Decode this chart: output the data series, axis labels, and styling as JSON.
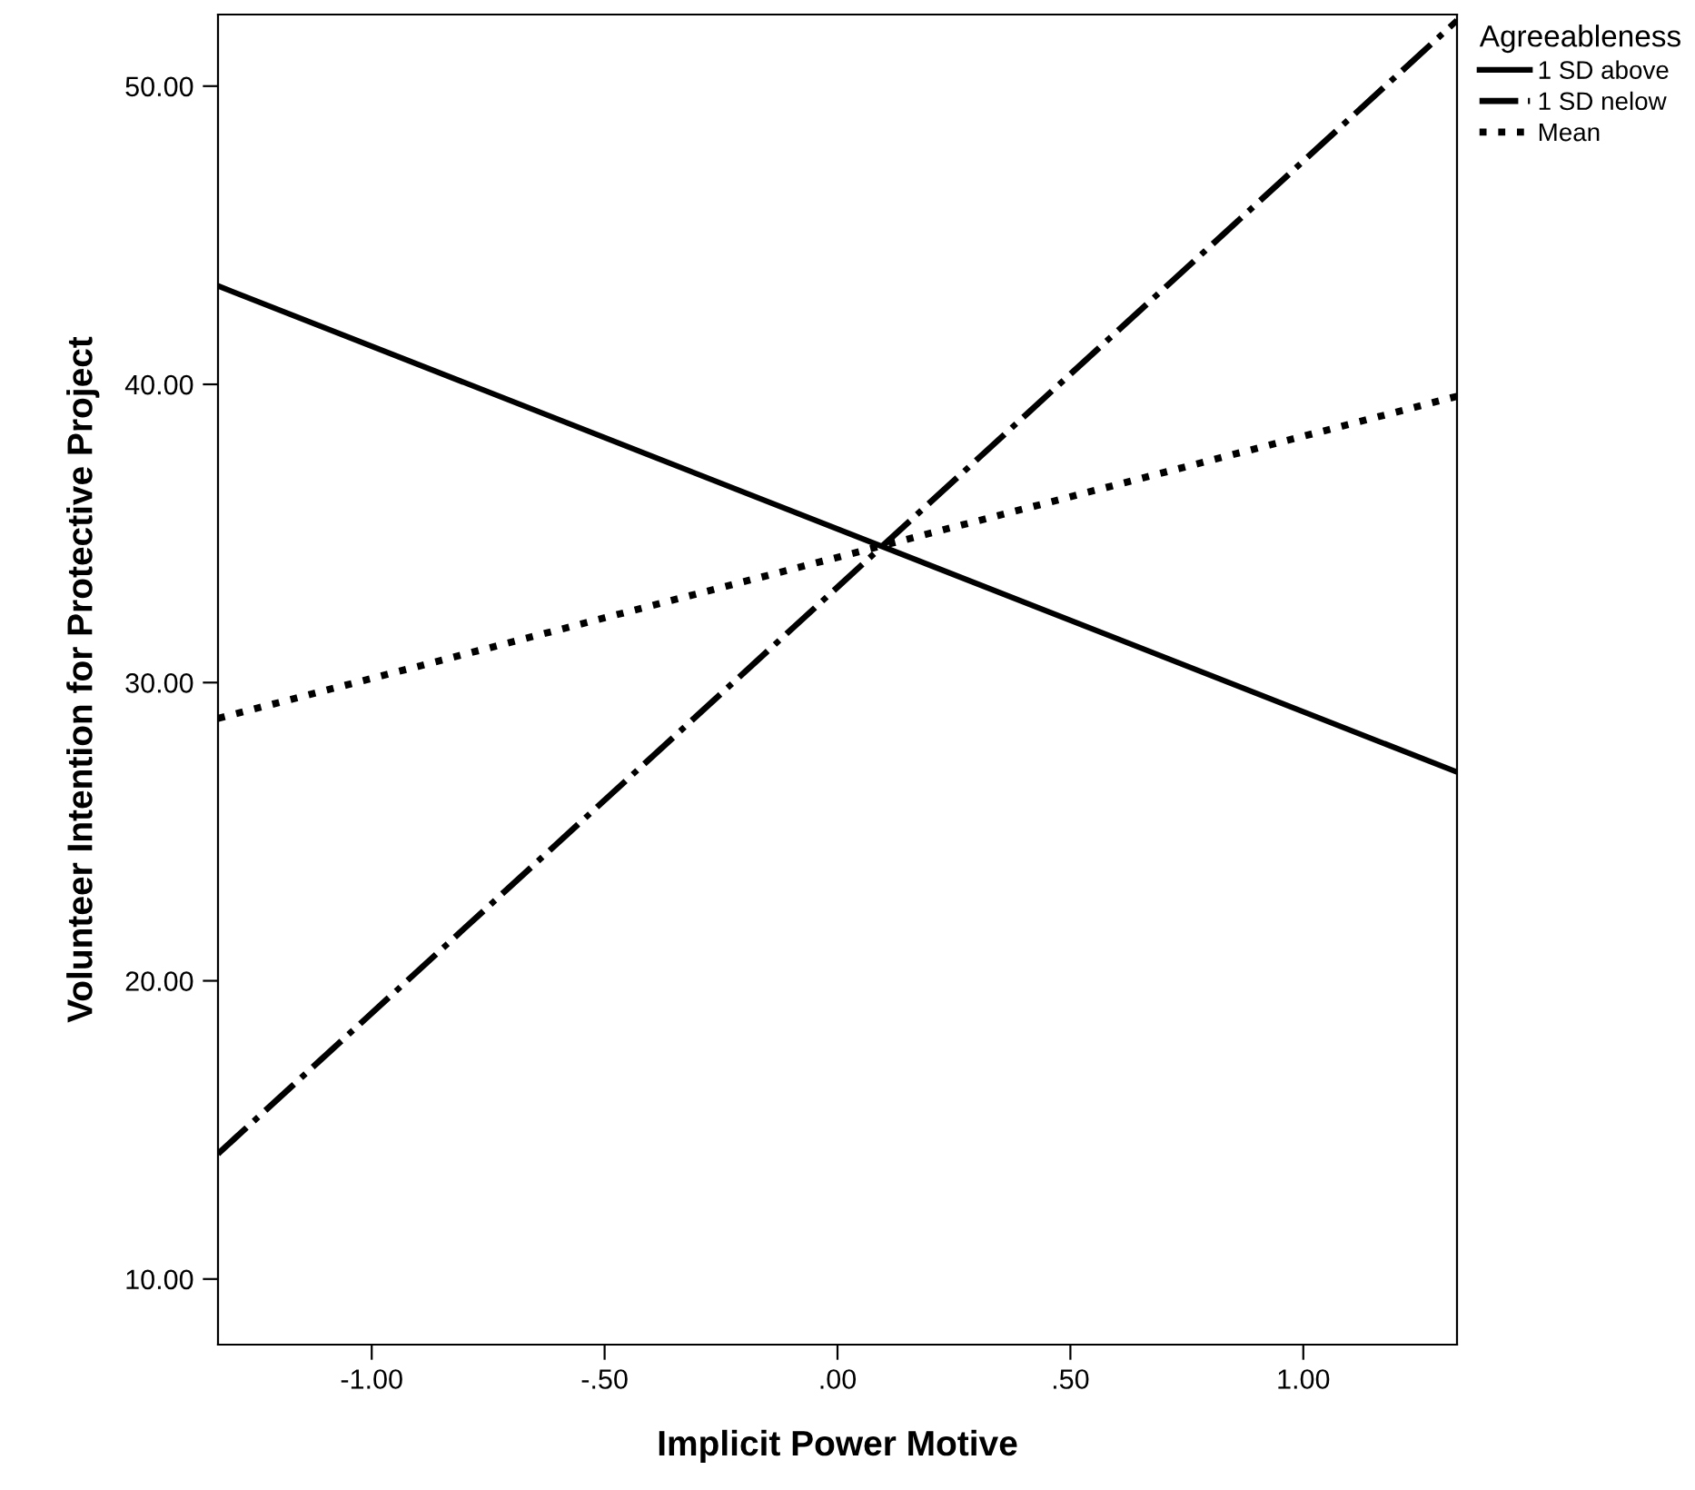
{
  "chart_data": {
    "type": "line",
    "xlabel": "Implicit Power Motive",
    "ylabel": "Volunteer Intention for Protective Project",
    "legend_title": "Agreeableness",
    "legend": "top right",
    "x": [
      -1.33,
      1.33
    ],
    "series": [
      {
        "name": "1 SD above",
        "color": "#000000",
        "line_style": "solid",
        "values": [
          43.3,
          27.0
        ]
      },
      {
        "name": "1 SD nelow",
        "color": "#000000",
        "line_style": "dashdot",
        "values": [
          14.2,
          52.2
        ]
      },
      {
        "name": "Mean",
        "color": "#000000",
        "line_style": "dotted",
        "values": [
          28.8,
          39.6
        ]
      }
    ],
    "xlim": [
      -1.33,
      1.33
    ],
    "ylim": [
      7.8,
      52.4
    ],
    "xticks": [
      {
        "value": -1,
        "label": "-1.00"
      },
      {
        "value": -0.5,
        "label": "-.50"
      },
      {
        "value": 0,
        "label": ".00"
      },
      {
        "value": 0.5,
        "label": ".50"
      },
      {
        "value": 1,
        "label": "1.00"
      }
    ],
    "yticks": [
      {
        "value": 10,
        "label": "10.00"
      },
      {
        "value": 20,
        "label": "20.00"
      },
      {
        "value": 30,
        "label": "30.00"
      },
      {
        "value": 40,
        "label": "40.00"
      },
      {
        "value": 50,
        "label": "50.00"
      }
    ],
    "grid": false
  }
}
